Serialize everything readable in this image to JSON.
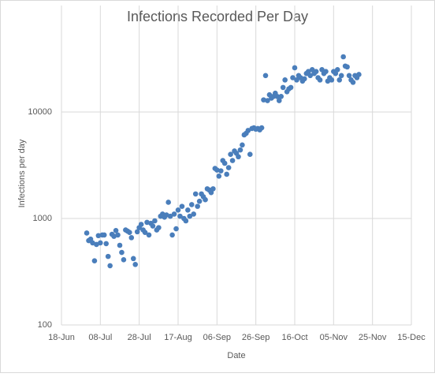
{
  "chart_data": {
    "type": "scatter",
    "title": "Infections Recorded Per Day",
    "x_label": "Date",
    "y_label": "Infections per day",
    "ylog": true,
    "grid": true,
    "color": "#4a7ebb",
    "ylim": [
      100,
      100000
    ],
    "yticks": [
      100,
      1000,
      10000
    ],
    "xlim": [
      "18-Jun",
      "15-Dec"
    ],
    "xticks": [
      "18-Jun",
      "08-Jul",
      "28-Jul",
      "17-Aug",
      "06-Sep",
      "26-Sep",
      "16-Oct",
      "05-Nov",
      "25-Nov",
      "15-Dec"
    ],
    "x": [
      "01-Jul",
      "02-Jul",
      "03-Jul",
      "04-Jul",
      "05-Jul",
      "06-Jul",
      "07-Jul",
      "08-Jul",
      "09-Jul",
      "10-Jul",
      "11-Jul",
      "12-Jul",
      "13-Jul",
      "14-Jul",
      "15-Jul",
      "16-Jul",
      "17-Jul",
      "18-Jul",
      "19-Jul",
      "20-Jul",
      "21-Jul",
      "22-Jul",
      "23-Jul",
      "24-Jul",
      "25-Jul",
      "26-Jul",
      "27-Jul",
      "28-Jul",
      "29-Jul",
      "30-Jul",
      "31-Jul",
      "01-Aug",
      "02-Aug",
      "03-Aug",
      "04-Aug",
      "05-Aug",
      "06-Aug",
      "07-Aug",
      "08-Aug",
      "09-Aug",
      "10-Aug",
      "11-Aug",
      "12-Aug",
      "13-Aug",
      "14-Aug",
      "15-Aug",
      "16-Aug",
      "17-Aug",
      "18-Aug",
      "19-Aug",
      "20-Aug",
      "21-Aug",
      "22-Aug",
      "23-Aug",
      "24-Aug",
      "25-Aug",
      "26-Aug",
      "27-Aug",
      "28-Aug",
      "29-Aug",
      "30-Aug",
      "31-Aug",
      "01-Sep",
      "02-Sep",
      "03-Sep",
      "04-Sep",
      "05-Sep",
      "06-Sep",
      "07-Sep",
      "08-Sep",
      "09-Sep",
      "10-Sep",
      "11-Sep",
      "12-Sep",
      "13-Sep",
      "14-Sep",
      "15-Sep",
      "16-Sep",
      "17-Sep",
      "18-Sep",
      "19-Sep",
      "20-Sep",
      "21-Sep",
      "22-Sep",
      "23-Sep",
      "24-Sep",
      "25-Sep",
      "26-Sep",
      "27-Sep",
      "28-Sep",
      "29-Sep",
      "30-Sep",
      "01-Oct",
      "02-Oct",
      "03-Oct",
      "04-Oct",
      "05-Oct",
      "06-Oct",
      "07-Oct",
      "08-Oct",
      "09-Oct",
      "10-Oct",
      "11-Oct",
      "12-Oct",
      "13-Oct",
      "14-Oct",
      "15-Oct",
      "16-Oct",
      "17-Oct",
      "18-Oct",
      "19-Oct",
      "20-Oct",
      "21-Oct",
      "22-Oct",
      "23-Oct",
      "24-Oct",
      "25-Oct",
      "26-Oct",
      "27-Oct",
      "28-Oct",
      "29-Oct",
      "30-Oct",
      "31-Oct",
      "01-Nov",
      "02-Nov",
      "03-Nov",
      "04-Nov",
      "05-Nov",
      "06-Nov",
      "07-Nov",
      "08-Nov",
      "09-Nov",
      "10-Nov",
      "11-Nov",
      "12-Nov",
      "13-Nov",
      "14-Nov",
      "15-Nov",
      "16-Nov",
      "17-Nov",
      "18-Nov"
    ],
    "values": [
      730,
      620,
      640,
      590,
      400,
      570,
      690,
      590,
      700,
      700,
      580,
      440,
      360,
      710,
      680,
      770,
      700,
      560,
      480,
      410,
      780,
      760,
      740,
      660,
      420,
      370,
      750,
      820,
      880,
      780,
      740,
      920,
      700,
      900,
      850,
      950,
      780,
      820,
      1050,
      1100,
      1030,
      1080,
      1420,
      1050,
      700,
      1100,
      800,
      1200,
      1050,
      1300,
      1000,
      950,
      1200,
      1050,
      1350,
      1100,
      1700,
      1300,
      1450,
      1700,
      1600,
      1500,
      1900,
      1850,
      1750,
      1900,
      2950,
      2850,
      2500,
      2800,
      3500,
      3300,
      2600,
      3000,
      4000,
      3500,
      4300,
      4100,
      3800,
      4400,
      4900,
      6100,
      6300,
      6700,
      4000,
      7000,
      7100,
      6900,
      7000,
      6800,
      7100,
      13000,
      22000,
      12800,
      14500,
      13500,
      14000,
      15000,
      14000,
      12800,
      14000,
      17000,
      20000,
      15500,
      16500,
      17000,
      21000,
      26000,
      20000,
      22000,
      21000,
      19500,
      20500,
      23000,
      24000,
      22000,
      25000,
      23000,
      24000,
      21000,
      20000,
      25000,
      23000,
      24000,
      19500,
      21000,
      20000,
      24000,
      23000,
      25000,
      20000,
      22000,
      33000,
      27000,
      26500,
      22000,
      20000,
      19000,
      22000,
      21000,
      22500
    ]
  }
}
